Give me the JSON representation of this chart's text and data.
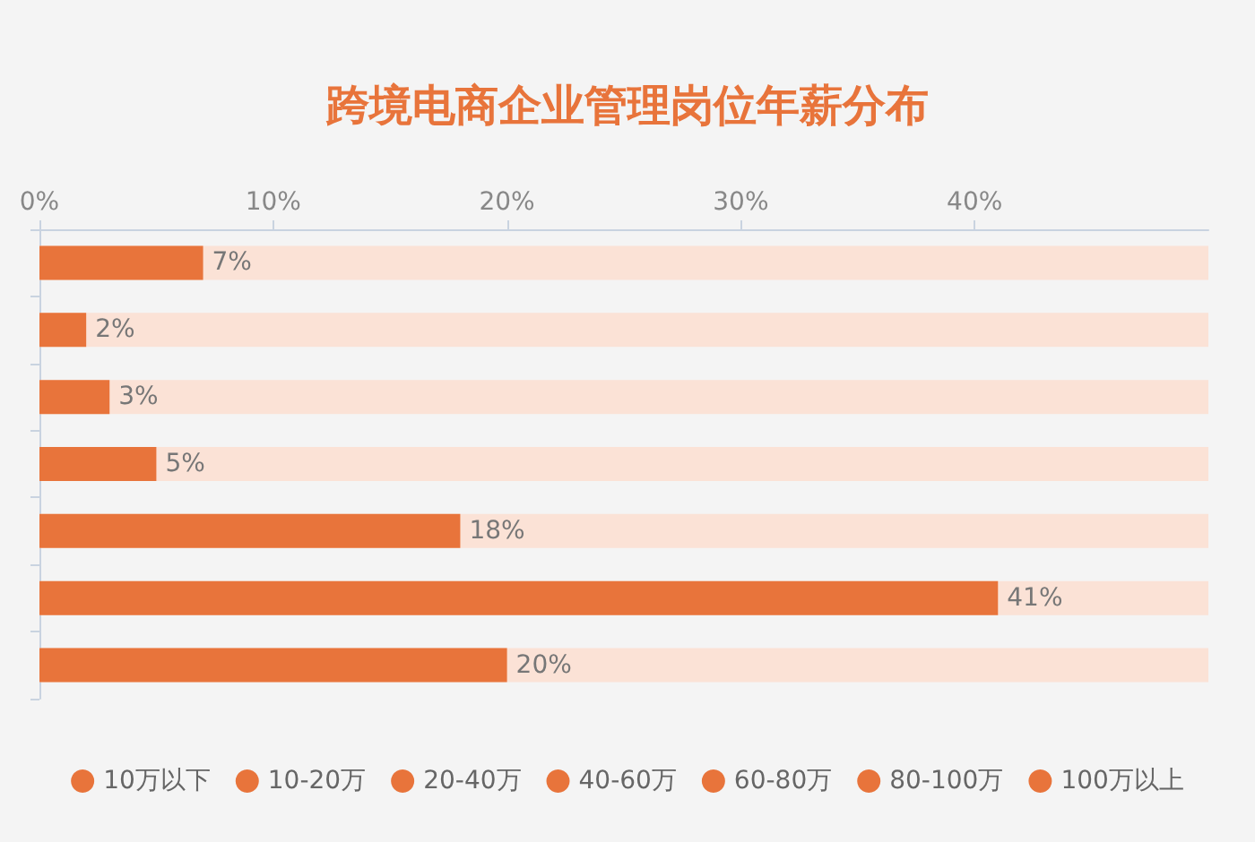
{
  "chart_data": {
    "type": "bar",
    "orientation": "horizontal",
    "stacked": true,
    "title": "跨境电商企业管理岗位年薪分布",
    "categories": [
      null,
      null,
      null,
      null,
      null,
      null,
      null
    ],
    "series": [
      {
        "name": "10万以下",
        "color": "#e8743b",
        "values": [
          7,
          null,
          null,
          null,
          null,
          null,
          null
        ],
        "value_labels": [
          "7%",
          null,
          null,
          null,
          null,
          null,
          null
        ]
      },
      {
        "name": "10-20万",
        "color": "#e8743b",
        "values": [
          null,
          2,
          null,
          null,
          null,
          null,
          null
        ],
        "value_labels": [
          null,
          "2%",
          null,
          null,
          null,
          null,
          null
        ]
      },
      {
        "name": "20-40万",
        "color": "#e8743b",
        "values": [
          null,
          null,
          3,
          null,
          null,
          null,
          null
        ],
        "value_labels": [
          null,
          null,
          "3%",
          null,
          null,
          null,
          null
        ]
      },
      {
        "name": "40-60万",
        "color": "#e8743b",
        "values": [
          null,
          null,
          null,
          5,
          null,
          null,
          null
        ],
        "value_labels": [
          null,
          null,
          null,
          "5%",
          null,
          null,
          null
        ]
      },
      {
        "name": "60-80万",
        "color": "#e8743b",
        "values": [
          null,
          null,
          null,
          null,
          18,
          null,
          null
        ],
        "value_labels": [
          null,
          null,
          null,
          null,
          "18%",
          null,
          null
        ]
      },
      {
        "name": "80-100万",
        "color": "#e8743b",
        "values": [
          null,
          null,
          null,
          null,
          null,
          41,
          null
        ],
        "value_labels": [
          null,
          null,
          null,
          null,
          null,
          "41%",
          null
        ]
      },
      {
        "name": "100万以上",
        "color": "#e8743b",
        "values": [
          null,
          null,
          null,
          null,
          null,
          null,
          20
        ],
        "value_labels": [
          null,
          null,
          null,
          null,
          null,
          null,
          "20%"
        ]
      }
    ],
    "xlim": [
      0,
      50
    ],
    "xticks": [
      {
        "value": 0,
        "label": "0%"
      },
      {
        "value": 10,
        "label": "10%"
      },
      {
        "value": 20,
        "label": "20%"
      },
      {
        "value": 30,
        "label": "30%"
      },
      {
        "value": 40,
        "label": "40%"
      }
    ],
    "tick_labels": "x",
    "grid": false,
    "legend": "bottom"
  }
}
